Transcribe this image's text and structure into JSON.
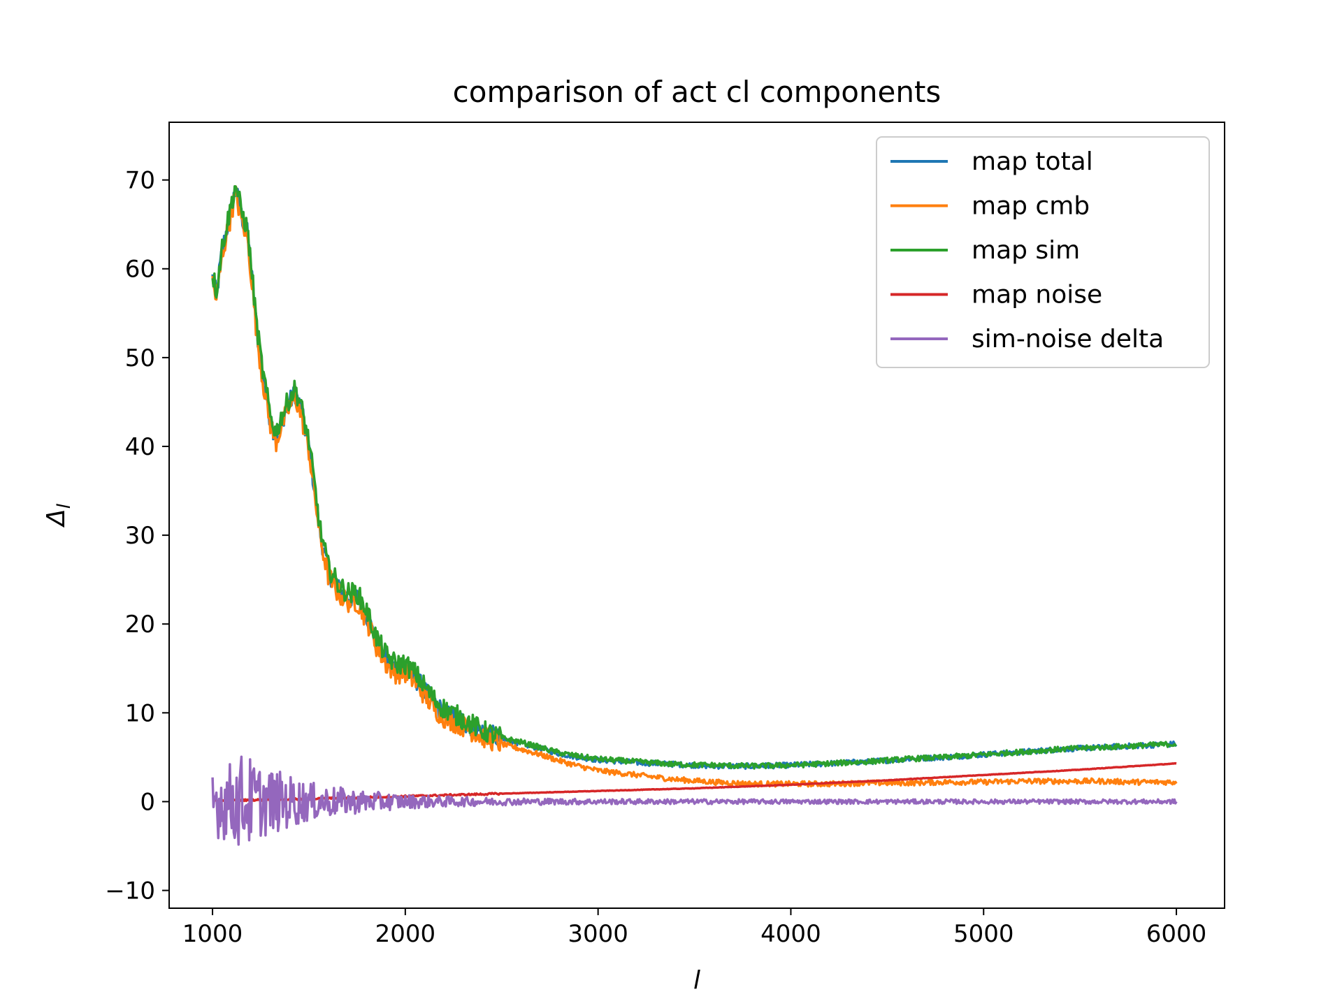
{
  "chart_data": {
    "type": "line",
    "title": "comparison of act cl components",
    "xlabel": "l",
    "ylabel_main": "Δ",
    "ylabel_sub": "l",
    "xlim": [
      775,
      6250
    ],
    "ylim": [
      -12,
      76.5
    ],
    "xticks": [
      1000,
      2000,
      3000,
      4000,
      5000,
      6000
    ],
    "xtick_labels": [
      "1000",
      "2000",
      "3000",
      "4000",
      "5000",
      "6000"
    ],
    "yticks": [
      -10,
      0,
      10,
      20,
      30,
      40,
      50,
      60,
      70
    ],
    "ytick_labels": [
      "−10",
      "0",
      "10",
      "20",
      "30",
      "40",
      "50",
      "60",
      "70"
    ],
    "grid": false,
    "legend_position": "top-right",
    "series": [
      {
        "name": "map total",
        "color": "#1f77b4",
        "noise": 1.2,
        "x": [
          1000,
          1020,
          1050,
          1080,
          1100,
          1120,
          1150,
          1180,
          1200,
          1230,
          1260,
          1300,
          1330,
          1360,
          1400,
          1430,
          1460,
          1500,
          1530,
          1560,
          1600,
          1650,
          1700,
          1750,
          1800,
          1850,
          1900,
          1950,
          2000,
          2050,
          2100,
          2150,
          2200,
          2300,
          2400,
          2500,
          2600,
          2700,
          2800,
          2900,
          3000,
          3200,
          3400,
          3600,
          3800,
          4000,
          4200,
          4400,
          4600,
          4800,
          5000,
          5200,
          5400,
          5600,
          5800,
          6000
        ],
        "y": [
          59,
          57,
          62,
          65,
          67,
          69,
          66,
          64,
          60,
          53,
          48,
          43,
          41,
          43,
          45,
          46,
          44,
          40,
          35,
          30,
          26,
          24,
          23,
          23,
          21,
          18,
          16,
          15,
          15,
          14,
          12.5,
          11,
          10,
          9,
          7.8,
          7,
          6.5,
          6,
          5.4,
          5,
          4.7,
          4.4,
          4.2,
          4.0,
          4.0,
          4.1,
          4.3,
          4.5,
          4.8,
          5.0,
          5.3,
          5.6,
          5.9,
          6.1,
          6.3,
          6.5
        ]
      },
      {
        "name": "map cmb",
        "color": "#ff7f0e",
        "noise": 1.2,
        "x": [
          1000,
          1020,
          1050,
          1080,
          1100,
          1120,
          1150,
          1180,
          1200,
          1230,
          1260,
          1300,
          1330,
          1360,
          1400,
          1430,
          1460,
          1500,
          1530,
          1560,
          1600,
          1650,
          1700,
          1750,
          1800,
          1850,
          1900,
          1950,
          2000,
          2050,
          2100,
          2150,
          2200,
          2300,
          2400,
          2500,
          2600,
          2700,
          2800,
          2900,
          3000,
          3200,
          3400,
          3600,
          3800,
          4000,
          4200,
          4400,
          4600,
          4800,
          5000,
          5200,
          5400,
          5600,
          5800,
          6000
        ],
        "y": [
          58.5,
          56.5,
          61.5,
          64.5,
          66.5,
          68.5,
          65.5,
          63.5,
          59.5,
          52.5,
          47.5,
          42.5,
          40.5,
          42.5,
          44.5,
          45.5,
          43.5,
          39.5,
          34.5,
          29.5,
          25.5,
          23.5,
          22.5,
          22.5,
          20.5,
          17.5,
          15.5,
          14.5,
          14.5,
          13.5,
          12,
          10.5,
          9.5,
          8.5,
          7.3,
          6.5,
          5.9,
          5.3,
          4.6,
          4.0,
          3.5,
          3.0,
          2.5,
          2.2,
          2.0,
          2.0,
          2.0,
          2.1,
          2.1,
          2.2,
          2.2,
          2.3,
          2.3,
          2.3,
          2.2,
          2.2
        ]
      },
      {
        "name": "map sim",
        "color": "#2ca02c",
        "noise": 1.2,
        "x": [
          1000,
          1020,
          1050,
          1080,
          1100,
          1120,
          1150,
          1180,
          1200,
          1230,
          1260,
          1300,
          1330,
          1360,
          1400,
          1430,
          1460,
          1500,
          1530,
          1560,
          1600,
          1650,
          1700,
          1750,
          1800,
          1850,
          1900,
          1950,
          2000,
          2050,
          2100,
          2150,
          2200,
          2300,
          2400,
          2500,
          2600,
          2700,
          2800,
          2900,
          3000,
          3200,
          3400,
          3600,
          3800,
          4000,
          4200,
          4400,
          4600,
          4800,
          5000,
          5200,
          5400,
          5600,
          5800,
          6000
        ],
        "y": [
          59.5,
          57.5,
          62.5,
          65.5,
          67.5,
          69.5,
          66.5,
          64.5,
          60.5,
          53.5,
          48.5,
          43.5,
          41.5,
          43.5,
          45.5,
          46.5,
          44.5,
          40.5,
          35.5,
          30.5,
          26.5,
          24.5,
          23.5,
          23.5,
          21.5,
          18.5,
          16.5,
          15.5,
          15.5,
          14.5,
          13,
          11.5,
          10.5,
          9.3,
          8.0,
          7.2,
          6.7,
          6.1,
          5.5,
          5.1,
          4.8,
          4.5,
          4.2,
          4.1,
          4.0,
          4.1,
          4.3,
          4.5,
          4.8,
          5.0,
          5.3,
          5.6,
          5.9,
          6.1,
          6.3,
          6.5
        ]
      },
      {
        "name": "map noise",
        "color": "#d62728",
        "noise": 0.1,
        "x": [
          1000,
          1500,
          2000,
          2500,
          3000,
          3500,
          4000,
          4500,
          5000,
          5500,
          6000
        ],
        "y": [
          0.1,
          0.3,
          0.6,
          0.9,
          1.2,
          1.5,
          1.9,
          2.4,
          3.0,
          3.6,
          4.3
        ]
      },
      {
        "name": "sim-noise delta",
        "color": "#9467bd",
        "noise": 0,
        "envelope": {
          "x": [
            1000,
            1100,
            1150,
            1200,
            1250,
            1300,
            1400,
            1500,
            1600,
            1800,
            2000,
            2200,
            2500,
            3000,
            4000,
            5000,
            6000
          ],
          "amp": [
            4.0,
            4.5,
            5.5,
            5.0,
            4.0,
            3.8,
            3.0,
            2.2,
            1.8,
            1.2,
            0.8,
            0.6,
            0.4,
            0.3,
            0.25,
            0.25,
            0.25
          ]
        },
        "x": [
          1000,
          6000
        ],
        "y": [
          0,
          0
        ]
      }
    ]
  }
}
